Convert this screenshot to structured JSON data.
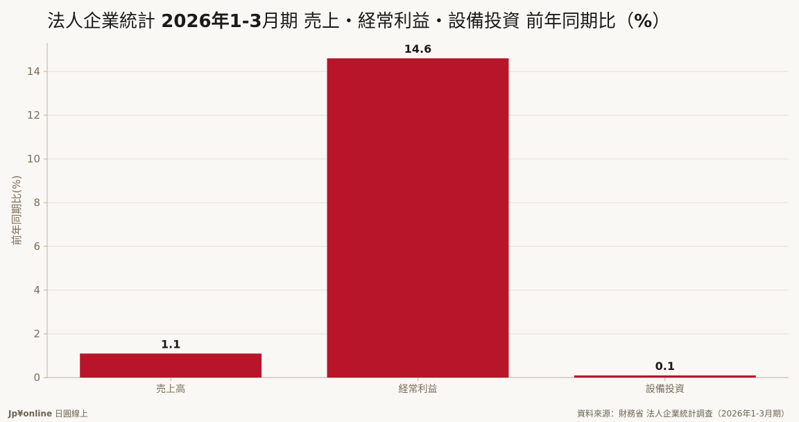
{
  "title_prefix": "法人企業統計 ",
  "title_bold": "2026年1-3",
  "title_mid": "月期 売上・経常利益・設備投資 前年同期比（",
  "title_pct": "%",
  "title_end": "）",
  "footer": {
    "brand": "Jp¥online",
    "brand_sub": " 日圓線上",
    "source": "資料來源：財務省 法人企業統計調査（2026年1-3月期）"
  },
  "chart_data": {
    "type": "bar",
    "categories": [
      "売上高",
      "経常利益",
      "設備投資"
    ],
    "values": [
      1.1,
      14.6,
      0.1
    ],
    "value_labels": [
      "1.1",
      "14.6",
      "0.1"
    ],
    "ylabel": "前年同期比(%)",
    "ylim": [
      0,
      15.3
    ],
    "yticks": [
      0,
      2,
      4,
      6,
      8,
      10,
      12,
      14
    ],
    "grid": true,
    "bar_color": "#b8152b"
  }
}
